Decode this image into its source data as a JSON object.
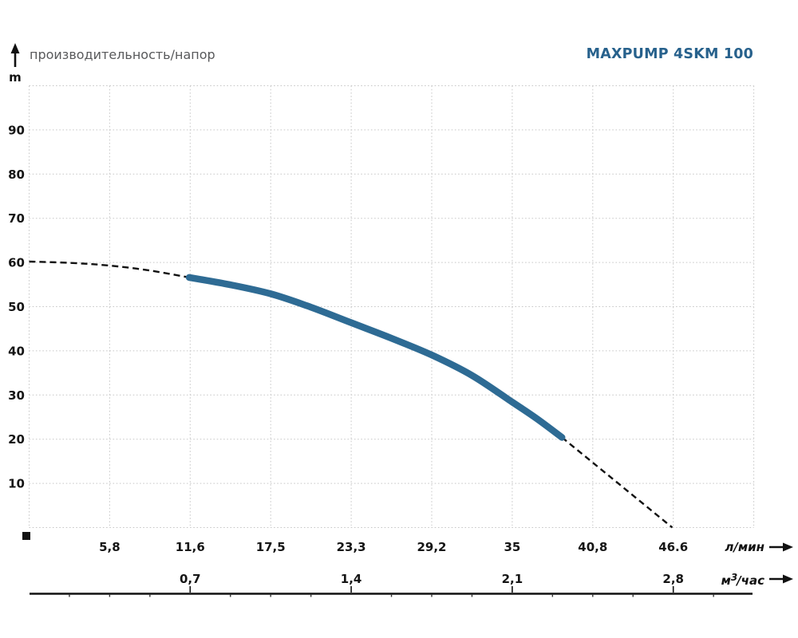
{
  "header": {
    "y_unit": "m",
    "title": "производительность/напор",
    "model": "MAXPUMP 4SKM 100",
    "model_color": "#27618c"
  },
  "chart_data": {
    "type": "line",
    "title": "производительность/напор",
    "series_name": "MAXPUMP 4SKM 100",
    "grid": "dotted",
    "grid_color": "#c7c7c7",
    "y_axis": {
      "unit": "m",
      "tick_values": [
        10,
        20,
        30,
        40,
        50,
        60,
        70,
        80,
        90
      ],
      "tick_labels": [
        "10",
        "20",
        "30",
        "40",
        "50",
        "60",
        "70",
        "80",
        "90"
      ],
      "range": [
        0,
        100
      ]
    },
    "x_axes": [
      {
        "unit": "л/мин",
        "tick_values_lmin": [
          5.8,
          11.6,
          17.5,
          23.3,
          29.2,
          35,
          40.8,
          46.6
        ],
        "tick_labels": [
          "5,8",
          "11,6",
          "17,5",
          "23,3",
          "29,2",
          "35",
          "40,8",
          "46.6"
        ],
        "range_lmin": [
          0,
          52.5
        ]
      },
      {
        "unit_prefix": "м",
        "unit_sup": "3",
        "unit_suffix": "/час",
        "tick_values_m3h": [
          0.7,
          1.4,
          2.1,
          2.8
        ],
        "tick_values_lmin": [
          11.6,
          23.3,
          35,
          46.6
        ],
        "tick_labels": [
          "0,7",
          "1,4",
          "2,1",
          "2,8"
        ]
      }
    ],
    "curve": {
      "color": "#2e6b94",
      "dashed_color": "#111111",
      "head_dashed_points_lmin_m": [
        [
          0,
          60.2
        ],
        [
          3,
          59.9
        ],
        [
          5.8,
          59.3
        ],
        [
          8.7,
          58.2
        ],
        [
          11.6,
          56.6
        ]
      ],
      "solid_points_lmin_m": [
        [
          11.6,
          56.6
        ],
        [
          14.5,
          55.0
        ],
        [
          17.5,
          52.9
        ],
        [
          20.4,
          49.9
        ],
        [
          23.3,
          46.4
        ],
        [
          26.2,
          42.9
        ],
        [
          29.2,
          39.0
        ],
        [
          32.1,
          34.4
        ],
        [
          35,
          28.4
        ],
        [
          36.8,
          24.6
        ],
        [
          38.6,
          20.4
        ]
      ],
      "tail_dashed_points_lmin_m": [
        [
          38.6,
          20.4
        ],
        [
          46.6,
          0
        ]
      ]
    }
  }
}
